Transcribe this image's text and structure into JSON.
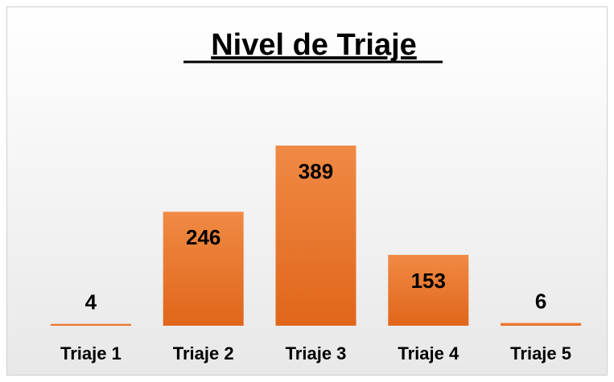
{
  "chart_data": {
    "type": "bar",
    "title": "Nivel de Triaje",
    "categories": [
      "Triaje 1",
      "Triaje 2",
      "Triaje 3",
      "Triaje 4",
      "Triaje 5"
    ],
    "values": [
      4,
      246,
      389,
      153,
      6
    ],
    "color": "#ed7d31"
  }
}
